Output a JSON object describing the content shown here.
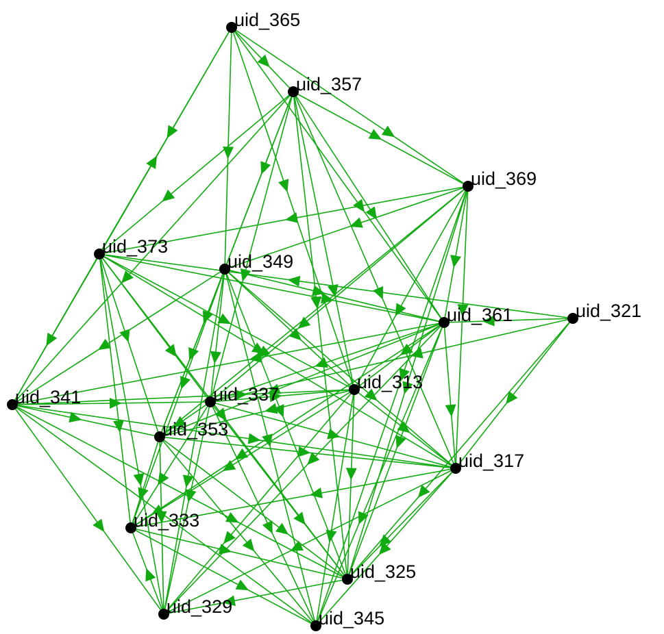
{
  "graph": {
    "colors": {
      "edge": "#11aa11",
      "node": "#000000",
      "label": "#000000",
      "background": "#ffffff"
    },
    "nodes": [
      {
        "id": "uid_365",
        "label": "uid_365"
      },
      {
        "id": "uid_357",
        "label": "uid_357"
      },
      {
        "id": "uid_369",
        "label": "uid_369"
      },
      {
        "id": "uid_373",
        "label": "uid_373"
      },
      {
        "id": "uid_349",
        "label": "uid_349"
      },
      {
        "id": "uid_361",
        "label": "uid_361"
      },
      {
        "id": "uid_321",
        "label": "uid_321"
      },
      {
        "id": "uid_341",
        "label": "uid_341"
      },
      {
        "id": "uid_337",
        "label": "uid_337"
      },
      {
        "id": "uid_313",
        "label": "uid_313"
      },
      {
        "id": "uid_353",
        "label": "uid_353"
      },
      {
        "id": "uid_317",
        "label": "uid_317"
      },
      {
        "id": "uid_333",
        "label": "uid_333"
      },
      {
        "id": "uid_325",
        "label": "uid_325"
      },
      {
        "id": "uid_329",
        "label": "uid_329"
      },
      {
        "id": "uid_345",
        "label": "uid_345"
      }
    ],
    "edges": [
      [
        "uid_365",
        "uid_357"
      ],
      [
        "uid_365",
        "uid_369"
      ],
      [
        "uid_365",
        "uid_349"
      ],
      [
        "uid_365",
        "uid_313"
      ],
      [
        "uid_365",
        "uid_361"
      ],
      [
        "uid_341",
        "uid_365"
      ],
      [
        "uid_365",
        "uid_373"
      ],
      [
        "uid_357",
        "uid_369"
      ],
      [
        "uid_357",
        "uid_373"
      ],
      [
        "uid_357",
        "uid_341"
      ],
      [
        "uid_357",
        "uid_349"
      ],
      [
        "uid_357",
        "uid_361"
      ],
      [
        "uid_357",
        "uid_313"
      ],
      [
        "uid_357",
        "uid_317"
      ],
      [
        "uid_357",
        "uid_325"
      ],
      [
        "uid_357",
        "uid_337"
      ],
      [
        "uid_357",
        "uid_353"
      ],
      [
        "uid_369",
        "uid_373"
      ],
      [
        "uid_369",
        "uid_349"
      ],
      [
        "uid_369",
        "uid_337"
      ],
      [
        "uid_369",
        "uid_313"
      ],
      [
        "uid_369",
        "uid_317"
      ],
      [
        "uid_369",
        "uid_325"
      ],
      [
        "uid_369",
        "uid_353"
      ],
      [
        "uid_369",
        "uid_361"
      ],
      [
        "uid_369",
        "uid_345"
      ],
      [
        "uid_373",
        "uid_341"
      ],
      [
        "uid_373",
        "uid_361"
      ],
      [
        "uid_373",
        "uid_313"
      ],
      [
        "uid_373",
        "uid_353"
      ],
      [
        "uid_373",
        "uid_333"
      ],
      [
        "uid_373",
        "uid_329"
      ],
      [
        "uid_373",
        "uid_317"
      ],
      [
        "uid_373",
        "uid_325"
      ],
      [
        "uid_373",
        "uid_337"
      ],
      [
        "uid_349",
        "uid_341"
      ],
      [
        "uid_349",
        "uid_361"
      ],
      [
        "uid_349",
        "uid_313"
      ],
      [
        "uid_349",
        "uid_337"
      ],
      [
        "uid_349",
        "uid_353"
      ],
      [
        "uid_349",
        "uid_333"
      ],
      [
        "uid_349",
        "uid_329"
      ],
      [
        "uid_349",
        "uid_317"
      ],
      [
        "uid_349",
        "uid_325"
      ],
      [
        "uid_349",
        "uid_345"
      ],
      [
        "uid_321",
        "uid_361"
      ],
      [
        "uid_321",
        "uid_373"
      ],
      [
        "uid_321",
        "uid_337"
      ],
      [
        "uid_321",
        "uid_317"
      ],
      [
        "uid_321",
        "uid_325"
      ],
      [
        "uid_361",
        "uid_337"
      ],
      [
        "uid_361",
        "uid_313"
      ],
      [
        "uid_361",
        "uid_353"
      ],
      [
        "uid_361",
        "uid_333"
      ],
      [
        "uid_361",
        "uid_329"
      ],
      [
        "uid_361",
        "uid_325"
      ],
      [
        "uid_361",
        "uid_345"
      ],
      [
        "uid_361",
        "uid_317"
      ],
      [
        "uid_361",
        "uid_341"
      ],
      [
        "uid_341",
        "uid_337"
      ],
      [
        "uid_341",
        "uid_313"
      ],
      [
        "uid_341",
        "uid_317"
      ],
      [
        "uid_341",
        "uid_353"
      ],
      [
        "uid_341",
        "uid_329"
      ],
      [
        "uid_341",
        "uid_325"
      ],
      [
        "uid_341",
        "uid_345"
      ],
      [
        "uid_337",
        "uid_313"
      ],
      [
        "uid_337",
        "uid_353"
      ],
      [
        "uid_337",
        "uid_333"
      ],
      [
        "uid_337",
        "uid_329"
      ],
      [
        "uid_337",
        "uid_317"
      ],
      [
        "uid_337",
        "uid_325"
      ],
      [
        "uid_337",
        "uid_345"
      ],
      [
        "uid_313",
        "uid_353"
      ],
      [
        "uid_313",
        "uid_333"
      ],
      [
        "uid_313",
        "uid_329"
      ],
      [
        "uid_313",
        "uid_317"
      ],
      [
        "uid_313",
        "uid_325"
      ],
      [
        "uid_313",
        "uid_345"
      ],
      [
        "uid_353",
        "uid_333"
      ],
      [
        "uid_353",
        "uid_329"
      ],
      [
        "uid_353",
        "uid_317"
      ],
      [
        "uid_353",
        "uid_325"
      ],
      [
        "uid_353",
        "uid_345"
      ],
      [
        "uid_317",
        "uid_333"
      ],
      [
        "uid_317",
        "uid_329"
      ],
      [
        "uid_317",
        "uid_325"
      ],
      [
        "uid_317",
        "uid_345"
      ],
      [
        "uid_333",
        "uid_325"
      ],
      [
        "uid_333",
        "uid_345"
      ],
      [
        "uid_325",
        "uid_329"
      ],
      [
        "uid_329",
        "uid_333"
      ]
    ]
  }
}
